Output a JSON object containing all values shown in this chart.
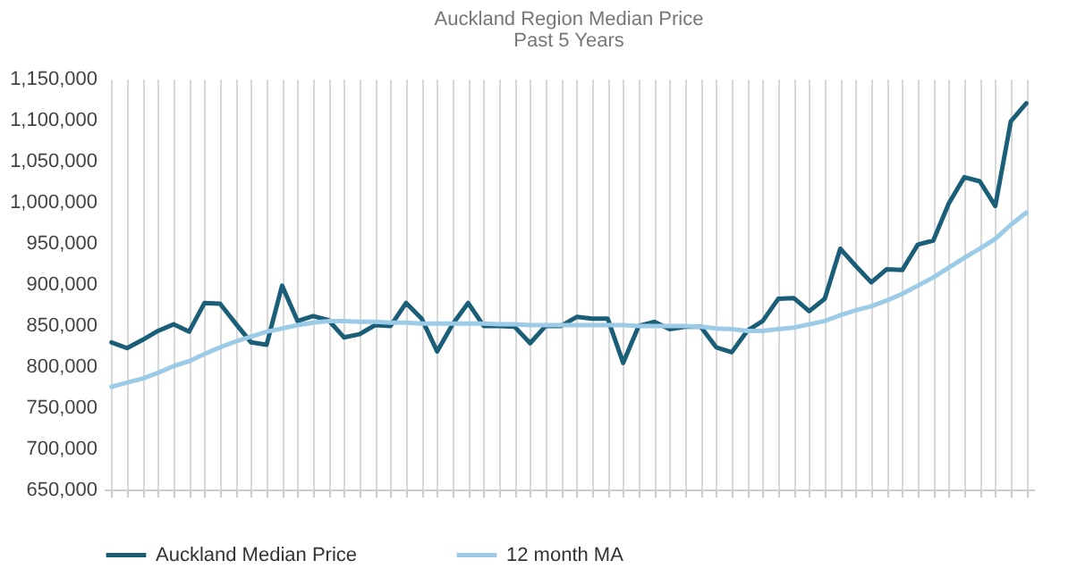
{
  "chart_data": {
    "type": "line",
    "title": "Auckland Region Median Price",
    "subtitle": "Past 5 Years",
    "categories": [
      null,
      null,
      null,
      null,
      null,
      null,
      null,
      null,
      null,
      null,
      null,
      null,
      null,
      null,
      null,
      null,
      null,
      null,
      null,
      null,
      null,
      null,
      null,
      null,
      null,
      null,
      null,
      null,
      null,
      null,
      null,
      null,
      null,
      null,
      null,
      null,
      null,
      null,
      null,
      null,
      null,
      null,
      null,
      null,
      null,
      null,
      null,
      null,
      null,
      null,
      null,
      null,
      null,
      null,
      null,
      null,
      null,
      null,
      null,
      null
    ],
    "series": [
      {
        "name": "Auckland Median Price",
        "color": "#1b5e78",
        "values": [
          829000,
          822000,
          832000,
          843000,
          851000,
          842000,
          877000,
          876000,
          852000,
          829000,
          826000,
          898000,
          855000,
          861000,
          856000,
          835000,
          839000,
          850000,
          849000,
          877000,
          858000,
          818000,
          851000,
          877000,
          849000,
          849000,
          848000,
          828000,
          849000,
          849000,
          860000,
          858000,
          858000,
          804000,
          849000,
          854000,
          845000,
          848000,
          848000,
          823000,
          817000,
          843000,
          855000,
          882000,
          883000,
          867000,
          882000,
          943000,
          922000,
          902000,
          918000,
          917000,
          948000,
          953000,
          998000,
          1030000,
          1025000,
          995000,
          1098000,
          1120000
        ]
      },
      {
        "name": "12 month MA",
        "color": "#9ccbe8",
        "values": [
          775000,
          780000,
          785000,
          792000,
          800000,
          806000,
          815000,
          823000,
          830000,
          836000,
          842000,
          846000,
          850000,
          853000,
          855000,
          855000,
          854000,
          854000,
          853000,
          853000,
          852000,
          852000,
          852000,
          852000,
          852000,
          851000,
          851000,
          850000,
          850000,
          850000,
          850000,
          850000,
          850000,
          850000,
          849000,
          849000,
          849000,
          849000,
          848000,
          846000,
          845000,
          843000,
          843000,
          845000,
          847000,
          851000,
          855000,
          862000,
          868000,
          873000,
          880000,
          888000,
          898000,
          908000,
          920000,
          932000,
          943000,
          955000,
          972000,
          987000
        ]
      }
    ],
    "ylim": [
      650000,
      1150000
    ],
    "yticks": [
      {
        "value": 650000,
        "label": "650,000"
      },
      {
        "value": 700000,
        "label": "700,000"
      },
      {
        "value": 750000,
        "label": "750,000"
      },
      {
        "value": 800000,
        "label": "800,000"
      },
      {
        "value": 850000,
        "label": "850,000"
      },
      {
        "value": 900000,
        "label": "900,000"
      },
      {
        "value": 950000,
        "label": "950,000"
      },
      {
        "value": 1000000,
        "label": "1,000,000"
      },
      {
        "value": 1050000,
        "label": "1,050,000"
      },
      {
        "value": 1100000,
        "label": "1,100,000"
      },
      {
        "value": 1150000,
        "label": "1,150,000"
      }
    ],
    "grid": "x",
    "legend": "bottom",
    "marker": "none",
    "line_style": "solid"
  }
}
